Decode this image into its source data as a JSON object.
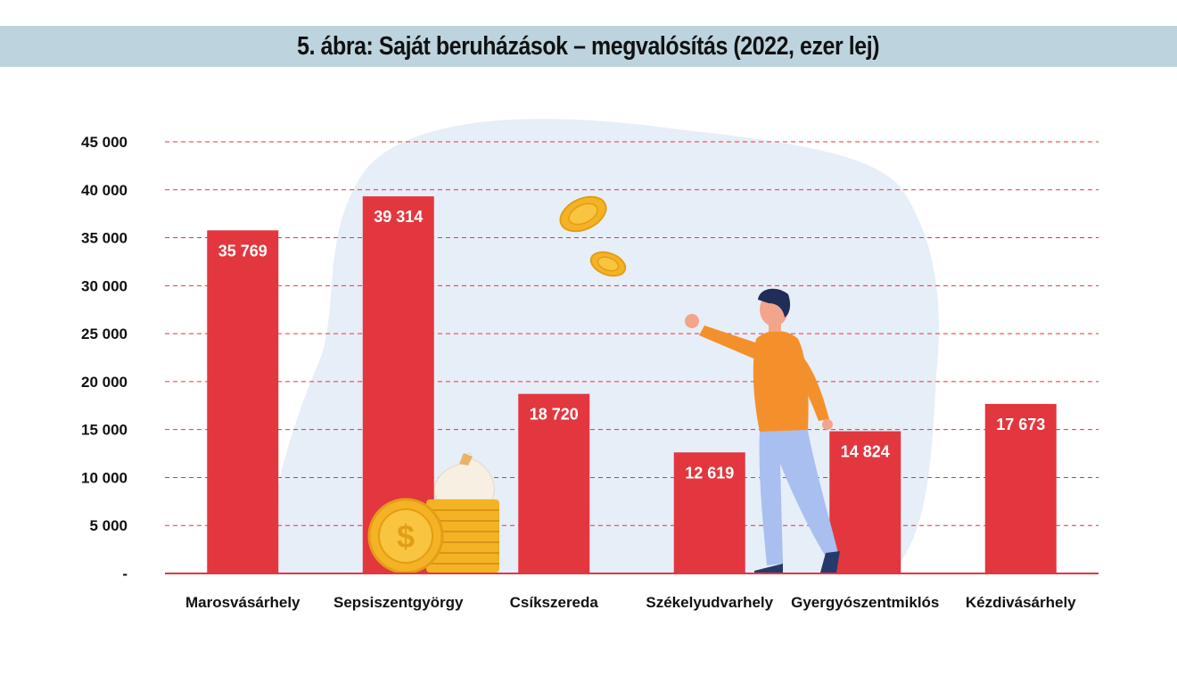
{
  "title": "5. ábra: Saját beruházások – megvalósítás (2022, ezer lej)",
  "colors": {
    "bar": "#e2373f",
    "title_band": "#bdd4de",
    "grid": "#e2373f",
    "backdrop": "#e6eef8"
  },
  "chart_data": {
    "type": "bar",
    "title": "5. ábra: Saját beruházások – megvalósítás (2022, ezer lej)",
    "categories": [
      "Marosvásárhely",
      "Sepsiszentgyörgy",
      "Csíkszereda",
      "Székelyudvarhely",
      "Gyergyószentmiklós",
      "Kézdivásárhely"
    ],
    "values": [
      35769,
      39314,
      18720,
      12619,
      14824,
      17673
    ],
    "value_labels": [
      "35 769",
      "39 314",
      "18 720",
      "12 619",
      "14 824",
      "17 673"
    ],
    "y_ticks": [
      0,
      5000,
      10000,
      15000,
      20000,
      25000,
      30000,
      35000,
      40000,
      45000
    ],
    "y_tick_labels": [
      "-",
      "5 000",
      "10 000",
      "15 000",
      "20 000",
      "25 000",
      "30 000",
      "35 000",
      "40 000",
      "45 000"
    ],
    "ylim": [
      0,
      45000
    ],
    "grid": true,
    "legend": "none",
    "decorations": [
      "coin-stack-illustration",
      "falling-coins-illustration",
      "person-illustration"
    ]
  }
}
